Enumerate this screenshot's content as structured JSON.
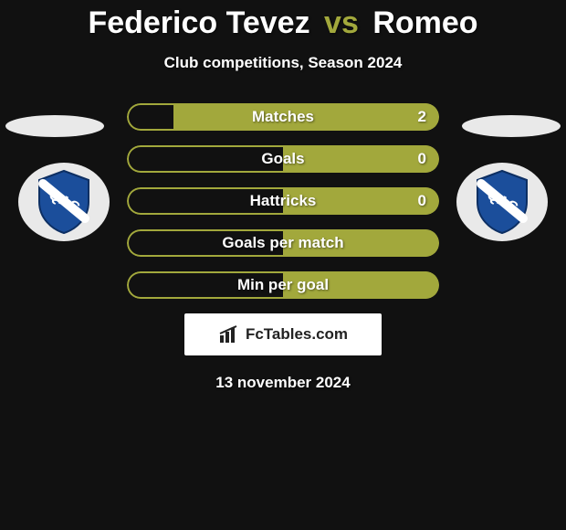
{
  "title": {
    "player1": "Federico Tevez",
    "vs": "vs",
    "player2": "Romeo"
  },
  "subtitle": "Club competitions, Season 2024",
  "colors": {
    "left_fill": "#a2a83c",
    "left_border": "#a2a83c",
    "right_fill": "#a2a83c",
    "right_border": "#a2a83c",
    "background": "#111111",
    "text": "#ffffff",
    "shield_blue": "#1b4e9b",
    "shield_white": "#ffffff"
  },
  "stats": [
    {
      "label": "Matches",
      "left_val": "",
      "right_val": "2",
      "left_pct": 15,
      "right_pct": 85,
      "left_filled": false,
      "right_filled": true
    },
    {
      "label": "Goals",
      "left_val": "",
      "right_val": "0",
      "left_pct": 50,
      "right_pct": 50,
      "left_filled": false,
      "right_filled": true
    },
    {
      "label": "Hattricks",
      "left_val": "",
      "right_val": "0",
      "left_pct": 50,
      "right_pct": 50,
      "left_filled": false,
      "right_filled": true
    },
    {
      "label": "Goals per match",
      "left_val": "",
      "right_val": "",
      "left_pct": 50,
      "right_pct": 50,
      "left_filled": false,
      "right_filled": true
    },
    {
      "label": "Min per goal",
      "left_val": "",
      "right_val": "",
      "left_pct": 50,
      "right_pct": 50,
      "left_filled": false,
      "right_filled": true
    }
  ],
  "brand": "FcTables.com",
  "date": "13 november 2024",
  "club_text": "QAC"
}
